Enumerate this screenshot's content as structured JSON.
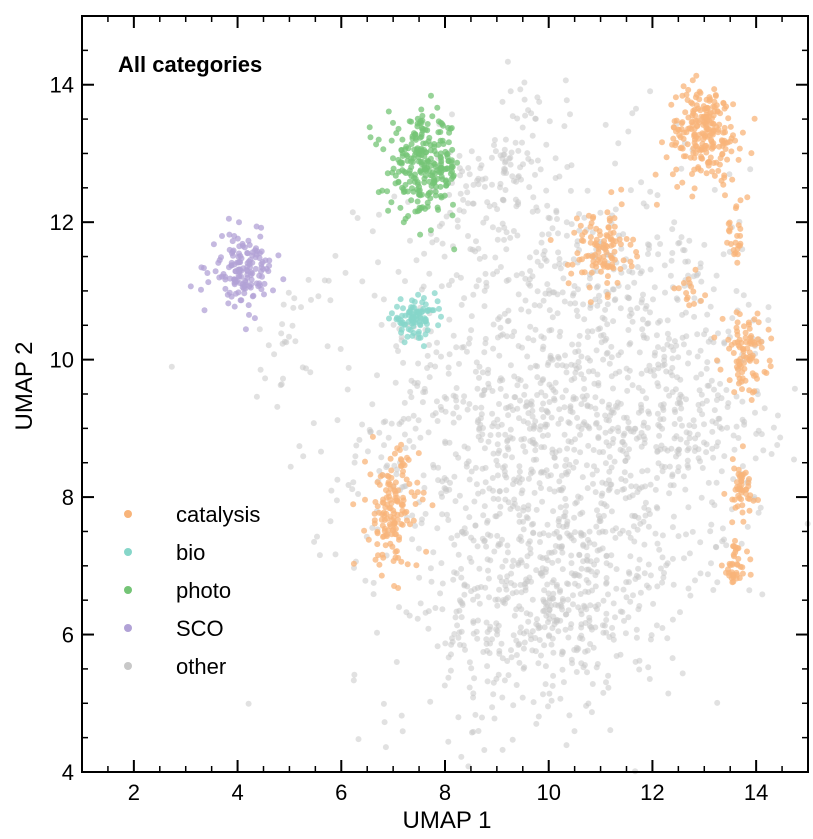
{
  "chart_data": {
    "type": "scatter",
    "title": "All categories",
    "xlabel": "UMAP 1",
    "ylabel": "UMAP 2",
    "xlim": [
      1.0,
      15.0
    ],
    "ylim": [
      4.0,
      15.0
    ],
    "xticks": [
      2,
      4,
      6,
      8,
      10,
      12,
      14
    ],
    "yticks": [
      4,
      6,
      8,
      10,
      12,
      14
    ],
    "xtick_labels": [
      "2",
      "4",
      "6",
      "8",
      "10",
      "12",
      "14"
    ],
    "ytick_labels": [
      "4",
      "6",
      "8",
      "10",
      "12",
      "14"
    ],
    "grid": false,
    "legend_position": "bottom-left",
    "series": [
      {
        "name": "other",
        "color": "#c8c8c8",
        "clusters": [
          {
            "center": [
              10.0,
              9.0
            ],
            "spread": [
              1.8,
              1.9
            ],
            "count": 1400
          },
          {
            "center": [
              9.5,
              6.2
            ],
            "spread": [
              0.9,
              0.8
            ],
            "count": 220
          },
          {
            "center": [
              12.7,
              9.6
            ],
            "spread": [
              0.8,
              1.2
            ],
            "count": 220
          },
          {
            "center": [
              8.9,
              12.5
            ],
            "spread": [
              0.5,
              0.5
            ],
            "count": 80
          },
          {
            "center": [
              11.0,
              6.6
            ],
            "spread": [
              0.6,
              0.5
            ],
            "count": 80
          },
          {
            "center": [
              5.0,
              10.3
            ],
            "spread": [
              0.3,
              0.4
            ],
            "count": 25
          },
          {
            "center": [
              9.6,
              13.6
            ],
            "spread": [
              0.3,
              0.4
            ],
            "count": 25
          }
        ]
      },
      {
        "name": "catalysis",
        "color": "#f8b47a",
        "clusters": [
          {
            "center": [
              13.0,
              13.3
            ],
            "spread": [
              0.35,
              0.35
            ],
            "count": 230
          },
          {
            "center": [
              11.0,
              11.6
            ],
            "spread": [
              0.3,
              0.3
            ],
            "count": 110
          },
          {
            "center": [
              7.0,
              7.8
            ],
            "spread": [
              0.25,
              0.45
            ],
            "count": 150
          },
          {
            "center": [
              13.8,
              10.1
            ],
            "spread": [
              0.22,
              0.28
            ],
            "count": 90
          },
          {
            "center": [
              13.7,
              8.1
            ],
            "spread": [
              0.15,
              0.25
            ],
            "count": 50
          },
          {
            "center": [
              13.6,
              7.0
            ],
            "spread": [
              0.12,
              0.18
            ],
            "count": 40
          },
          {
            "center": [
              13.6,
              11.8
            ],
            "spread": [
              0.12,
              0.25
            ],
            "count": 25
          },
          {
            "center": [
              12.8,
              11.0
            ],
            "spread": [
              0.18,
              0.12
            ],
            "count": 15
          }
        ]
      },
      {
        "name": "bio",
        "color": "#86d6c9",
        "clusters": [
          {
            "center": [
              7.4,
              10.6
            ],
            "spread": [
              0.22,
              0.13
            ],
            "count": 90
          }
        ]
      },
      {
        "name": "photo",
        "color": "#74c476",
        "clusters": [
          {
            "center": [
              7.6,
              12.8
            ],
            "spread": [
              0.35,
              0.35
            ],
            "count": 260
          }
        ]
      },
      {
        "name": "SCO",
        "color": "#b1a2d6",
        "clusters": [
          {
            "center": [
              4.1,
              11.3
            ],
            "spread": [
              0.3,
              0.25
            ],
            "count": 150
          }
        ]
      }
    ],
    "legend": [
      {
        "label": "catalysis",
        "color": "#f8b47a"
      },
      {
        "label": "bio",
        "color": "#86d6c9"
      },
      {
        "label": "photo",
        "color": "#74c476"
      },
      {
        "label": "SCO",
        "color": "#b1a2d6"
      },
      {
        "label": "other",
        "color": "#c8c8c8"
      }
    ]
  }
}
